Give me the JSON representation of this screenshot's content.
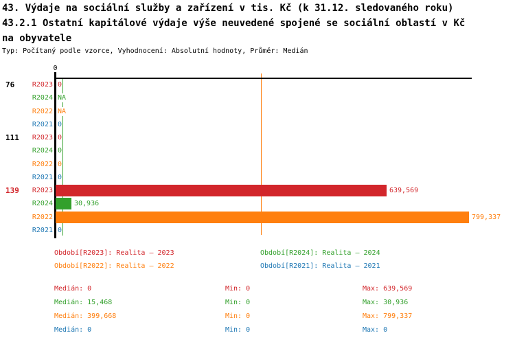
{
  "header": {
    "title_line1": "43. Výdaje na sociální služby a zařízení v tis. Kč (k 31.12. sledovaného roku)",
    "title_line2": "43.2.1 Ostatní kapitálové výdaje výše neuvedené spojené se sociální oblastí v Kč",
    "title_line3": "na obyvatele",
    "subtitle": "Typ: Počítaný podle vzorce, Vyhodnocení: Absolutní hodnoty, Průměr: Medián"
  },
  "colors": {
    "R2023": "#d2262b",
    "R2024": "#33a02c",
    "R2022": "#ff7f0e",
    "R2021": "#1f78b4",
    "axis": "#000000",
    "background": "#ffffff"
  },
  "chart_data": {
    "type": "bar",
    "orientation": "horizontal",
    "x_axis": {
      "tick_labels": [
        "0"
      ],
      "min": 0,
      "approx_max": 805000,
      "gridlines": false
    },
    "series_order": [
      "R2023",
      "R2024",
      "R2022",
      "R2021"
    ],
    "groups": [
      {
        "label": "76",
        "label_color": "black",
        "rows": [
          {
            "series": "R2023",
            "value": 0,
            "display": "0"
          },
          {
            "series": "R2024",
            "value": null,
            "display": "NA"
          },
          {
            "series": "R2022",
            "value": null,
            "display": "NA"
          },
          {
            "series": "R2021",
            "value": 0,
            "display": "0"
          }
        ]
      },
      {
        "label": "111",
        "label_color": "black",
        "rows": [
          {
            "series": "R2023",
            "value": 0,
            "display": "0"
          },
          {
            "series": "R2024",
            "value": 0,
            "display": "0"
          },
          {
            "series": "R2022",
            "value": 0,
            "display": "0"
          },
          {
            "series": "R2021",
            "value": 0,
            "display": "0"
          }
        ]
      },
      {
        "label": "139",
        "label_color": "R2023",
        "rows": [
          {
            "series": "R2023",
            "value": 639569,
            "display": "639,569"
          },
          {
            "series": "R2024",
            "value": 30936,
            "display": "30,936"
          },
          {
            "series": "R2022",
            "value": 799337,
            "display": "799,337"
          },
          {
            "series": "R2021",
            "value": 0,
            "display": "0"
          }
        ]
      }
    ],
    "median_lines": [
      {
        "series": "R2024",
        "value": 15468
      },
      {
        "series": "R2022",
        "value": 399668
      }
    ]
  },
  "legend": {
    "items": [
      {
        "series": "R2023",
        "label": "Období[R2023]: Realita – 2023"
      },
      {
        "series": "R2024",
        "label": "Období[R2024]: Realita – 2024"
      },
      {
        "series": "R2022",
        "label": "Období[R2022]: Realita – 2022"
      },
      {
        "series": "R2021",
        "label": "Období[R2021]: Realita – 2021"
      }
    ]
  },
  "stats": {
    "rows": [
      {
        "series": "R2023",
        "median": 0,
        "min": 0,
        "max": 639569,
        "median_text": "Medián: 0",
        "min_text": "Min: 0",
        "max_text": "Max: 639,569"
      },
      {
        "series": "R2024",
        "median": 15468,
        "min": 0,
        "max": 30936,
        "median_text": "Medián: 15,468",
        "min_text": "Min: 0",
        "max_text": "Max: 30,936"
      },
      {
        "series": "R2022",
        "median": 399668,
        "min": 0,
        "max": 799337,
        "median_text": "Medián: 399,668",
        "min_text": "Min: 0",
        "max_text": "Max: 799,337"
      },
      {
        "series": "R2021",
        "median": 0,
        "min": 0,
        "max": 0,
        "median_text": "Medián: 0",
        "min_text": "Min: 0",
        "max_text": "Max: 0"
      }
    ]
  }
}
